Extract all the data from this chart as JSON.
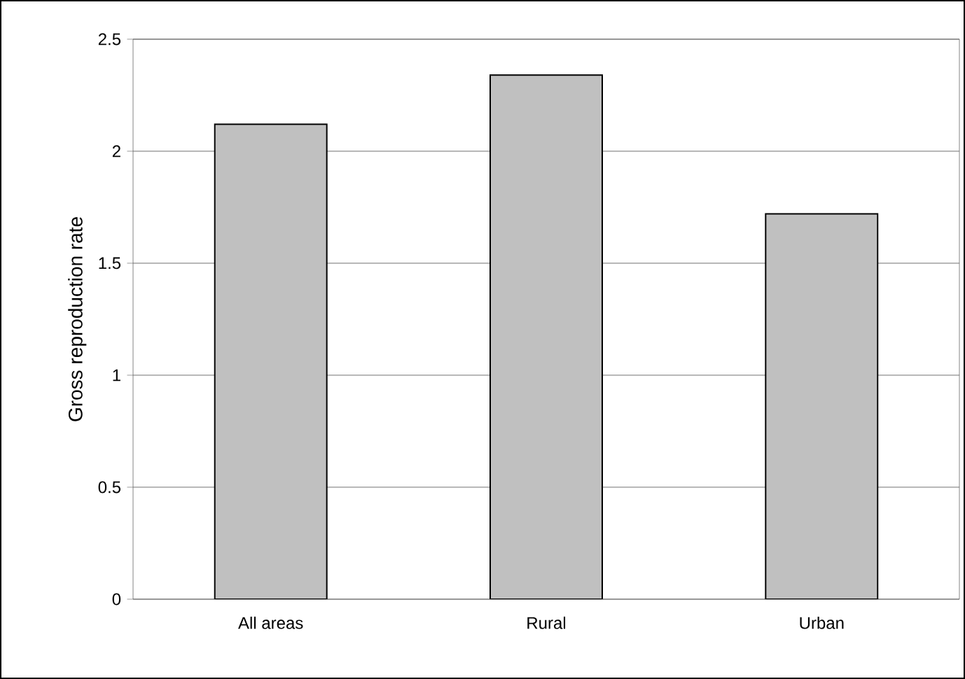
{
  "chart_data": {
    "type": "bar",
    "ylabel": "Gross reproduction rate",
    "categories": [
      "All areas",
      "Rural",
      "Urban"
    ],
    "values": [
      2.12,
      2.34,
      1.72
    ],
    "color": "#c0c0c0",
    "ylim": [
      0,
      2.5
    ],
    "yticks": [
      0,
      0.5,
      1,
      1.5,
      2,
      2.5
    ],
    "grid": "y"
  }
}
